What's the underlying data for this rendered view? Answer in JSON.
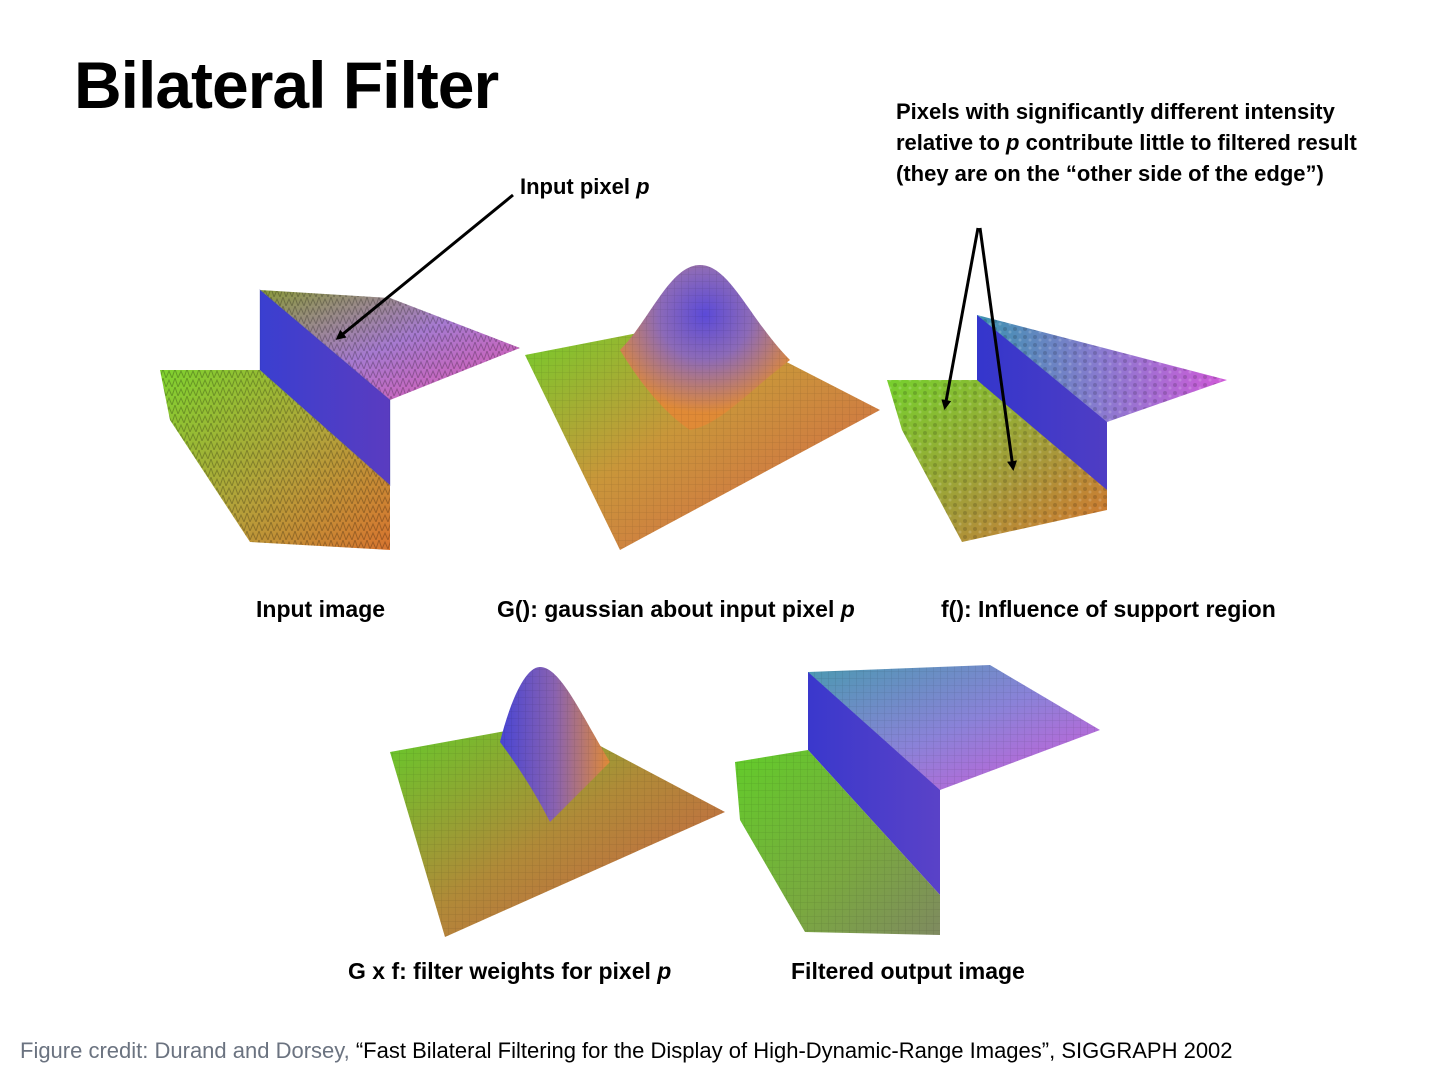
{
  "slide": {
    "title": "Bilateral Filter",
    "callout_input_pixel": {
      "text": "Input pixel ",
      "var": "p"
    },
    "note": {
      "part1": "Pixels with significantly different intensity relative to ",
      "var": "p",
      "part2": " contribute little to filtered result (they are on the “other side of the edge”)"
    },
    "captions": {
      "input_image": {
        "text": "Input image"
      },
      "gaussian": {
        "text": "G(): gaussian about input pixel ",
        "var": "p"
      },
      "influence": {
        "text": "f(): Influence of support region"
      },
      "weights": {
        "text": "G x f: filter weights for pixel ",
        "var": "p"
      },
      "output": {
        "text": "Filtered output image"
      }
    },
    "credit": {
      "lead": "Figure credit: Durand and Dorsey, ",
      "rest": "“Fast Bilateral Filtering for the Display of High-Dynamic-Range Images”, SIGGRAPH 2002"
    },
    "colors": {
      "green": "#6fcf2a",
      "orange": "#e28a2e",
      "blue": "#4a4bd8",
      "purple": "#b45ad8",
      "pink": "#e25aa8",
      "red": "#d8604a"
    }
  }
}
